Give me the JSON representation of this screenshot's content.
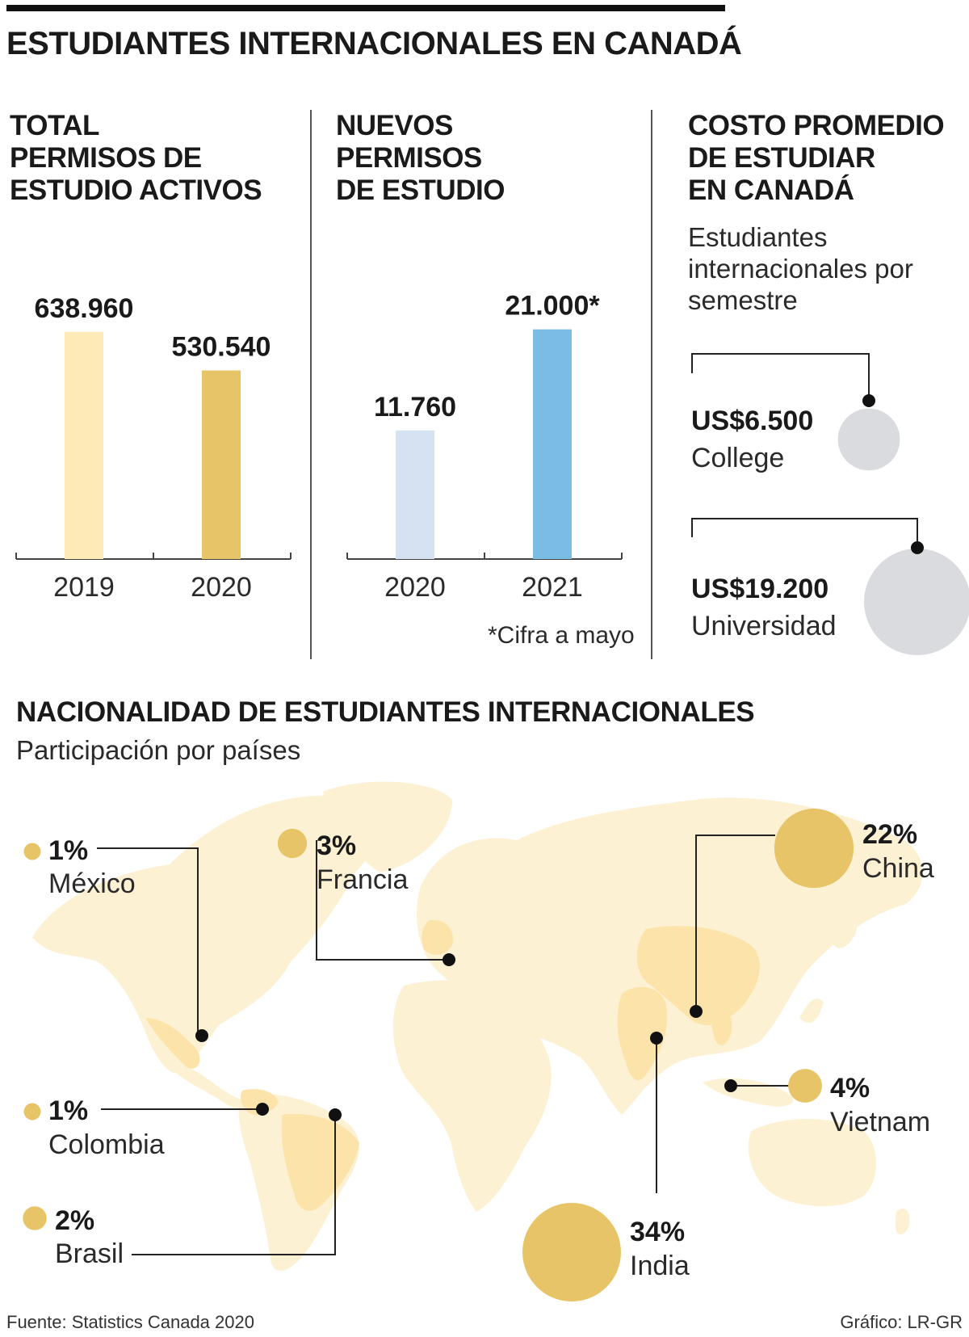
{
  "title": "ESTUDIANTES INTERNACIONALES EN CANADÁ",
  "panels": {
    "total": {
      "title": "TOTAL\nPERMISOS DE\nESTUDIO ACTIVOS"
    },
    "nuevos": {
      "title": "NUEVOS\nPERMISOS\nDE ESTUDIO",
      "footnote": "*Cifra a mayo"
    },
    "costo": {
      "title": "COSTO PROMEDIO\nDE ESTUDIAR\nEN CANADÁ",
      "subtitle": "Estudiantes\ninternacionales por\nsemestre",
      "items": [
        {
          "value": "US$6.500",
          "label": "College"
        },
        {
          "value": "US$19.200",
          "label": "Universidad"
        }
      ]
    }
  },
  "nationality": {
    "title": "NACIONALIDAD DE ESTUDIANTES INTERNACIONALES",
    "subtitle": "Participación por países",
    "countries": [
      {
        "pct": "1%",
        "name": "México"
      },
      {
        "pct": "3%",
        "name": "Francia"
      },
      {
        "pct": "22%",
        "name": "China"
      },
      {
        "pct": "1%",
        "name": "Colombia"
      },
      {
        "pct": "4%",
        "name": "Vietnam"
      },
      {
        "pct": "2%",
        "name": "Brasil"
      },
      {
        "pct": "34%",
        "name": "India"
      }
    ]
  },
  "footer": {
    "source": "Fuente: Statistics Canada 2020",
    "credit": "Gráfico: LR-GR"
  },
  "colors": {
    "bar_2019": "#fcebb6",
    "bar_2020_total": "#e8c468",
    "bar_2020_new": "#d6e2f1",
    "bar_2021_new": "#7bbce5",
    "cost_circle": "#dadbdf",
    "bubble": "#e8c468",
    "map_land": "#fdf1d4",
    "map_highlight": "#fbe3a9"
  },
  "chart_data": [
    {
      "type": "bar",
      "categories": [
        "2019",
        "2020"
      ],
      "values": [
        638960,
        530540
      ],
      "value_labels": [
        "638.960",
        "530.540"
      ],
      "ylim": [
        0,
        800000
      ]
    },
    {
      "type": "bar",
      "categories": [
        "2020",
        "2021"
      ],
      "values": [
        11760,
        21000
      ],
      "value_labels": [
        "11.760",
        "21.000*"
      ],
      "ylim": [
        0,
        26000
      ]
    },
    {
      "type": "bubble",
      "categories": [
        "College",
        "Universidad"
      ],
      "values": [
        6500,
        19200
      ]
    },
    {
      "type": "bubble",
      "categories": [
        "México",
        "Francia",
        "China",
        "Colombia",
        "Vietnam",
        "Brasil",
        "India"
      ],
      "values": [
        1,
        3,
        22,
        1,
        4,
        2,
        34
      ]
    }
  ]
}
